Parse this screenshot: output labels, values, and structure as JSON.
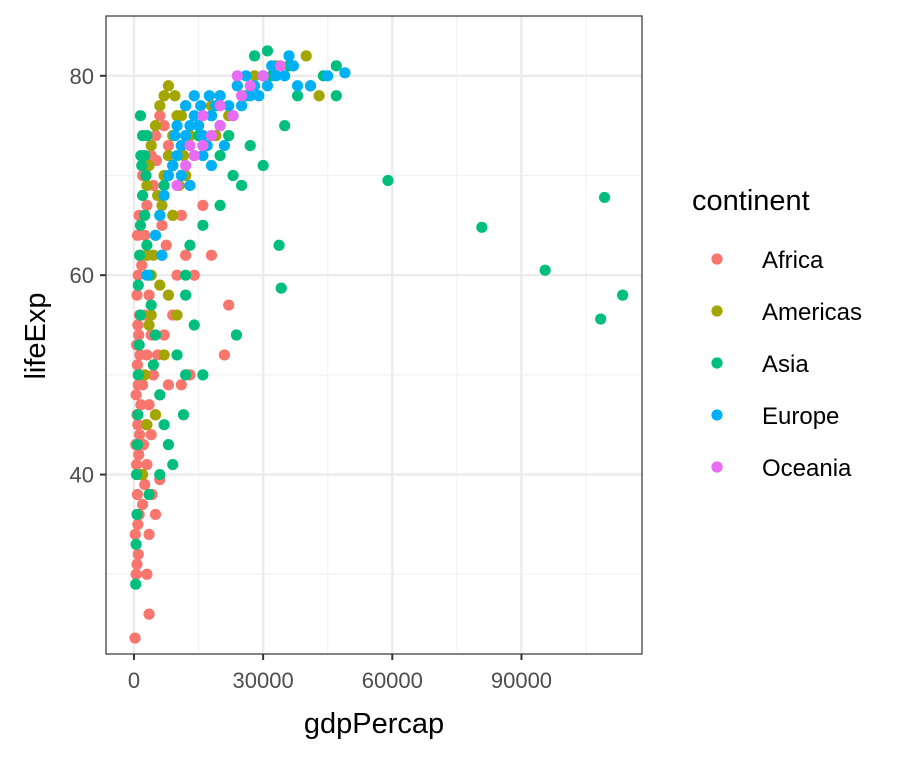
{
  "chart_data": {
    "type": "scatter",
    "xlabel": "gdpPercap",
    "ylabel": "lifeExp",
    "xlim": [
      -6500,
      118000
    ],
    "ylim": [
      22,
      86
    ],
    "x_ticks": [
      0,
      30000,
      60000,
      90000
    ],
    "x_tick_labels": [
      "0",
      "30000",
      "60000",
      "90000"
    ],
    "y_ticks": [
      40,
      60,
      80
    ],
    "y_tick_labels": [
      "40",
      "60",
      "80"
    ],
    "grid": true,
    "legend_title": "continent",
    "legend_position": "right",
    "series": [
      {
        "name": "Africa",
        "color": "#F8766D",
        "points": [
          [
            241,
            23.6
          ],
          [
            500,
            30
          ],
          [
            700,
            31
          ],
          [
            1000,
            32
          ],
          [
            300,
            34
          ],
          [
            900,
            35
          ],
          [
            1200,
            36
          ],
          [
            800,
            38
          ],
          [
            1500,
            40
          ],
          [
            600,
            41
          ],
          [
            1100,
            42
          ],
          [
            400,
            43
          ],
          [
            1300,
            44
          ],
          [
            900,
            45
          ],
          [
            700,
            46
          ],
          [
            1600,
            47
          ],
          [
            500,
            48
          ],
          [
            1000,
            49
          ],
          [
            1200,
            50
          ],
          [
            800,
            51
          ],
          [
            1400,
            52
          ],
          [
            600,
            53
          ],
          [
            1100,
            54
          ],
          [
            900,
            55
          ],
          [
            1300,
            56
          ],
          [
            700,
            58
          ],
          [
            1000,
            60
          ],
          [
            1500,
            62
          ],
          [
            800,
            64
          ],
          [
            1200,
            66
          ],
          [
            2000,
            37
          ],
          [
            2500,
            39
          ],
          [
            3000,
            41
          ],
          [
            2200,
            43
          ],
          [
            2800,
            45
          ],
          [
            3500,
            47
          ],
          [
            2000,
            49
          ],
          [
            3000,
            52
          ],
          [
            4000,
            54
          ],
          [
            2500,
            56
          ],
          [
            3500,
            58
          ],
          [
            1800,
            61
          ],
          [
            2500,
            64
          ],
          [
            3000,
            67
          ],
          [
            2000,
            70
          ],
          [
            4000,
            44
          ],
          [
            5000,
            46
          ],
          [
            6000,
            48
          ],
          [
            4500,
            50
          ],
          [
            5500,
            52
          ],
          [
            7000,
            54
          ],
          [
            3000,
            30
          ],
          [
            3500,
            34
          ],
          [
            5000,
            36
          ],
          [
            4200,
            38
          ],
          [
            6000,
            39.5
          ],
          [
            8000,
            49
          ],
          [
            9000,
            56
          ],
          [
            10000,
            60
          ],
          [
            12000,
            62
          ],
          [
            14000,
            60
          ],
          [
            11000,
            49
          ],
          [
            21000,
            52
          ],
          [
            22000,
            57
          ],
          [
            18000,
            62
          ],
          [
            16000,
            67
          ],
          [
            4000,
            72
          ],
          [
            5000,
            74
          ],
          [
            6000,
            76
          ],
          [
            7000,
            75
          ],
          [
            8000,
            73
          ],
          [
            9000,
            71
          ],
          [
            11000,
            66
          ],
          [
            13000,
            50
          ],
          [
            6500,
            65
          ],
          [
            7500,
            63
          ],
          [
            3500,
            26
          ],
          [
            4500,
            69
          ],
          [
            5200,
            71.5
          ]
        ]
      },
      {
        "name": "Americas",
        "color": "#A3A500",
        "points": [
          [
            2000,
            40
          ],
          [
            3000,
            45
          ],
          [
            2500,
            50
          ],
          [
            3500,
            55
          ],
          [
            4000,
            60
          ],
          [
            4500,
            62
          ],
          [
            5000,
            64
          ],
          [
            6000,
            66
          ],
          [
            5500,
            68
          ],
          [
            7000,
            70
          ],
          [
            8000,
            72
          ],
          [
            9000,
            74
          ],
          [
            10000,
            76
          ],
          [
            12000,
            77
          ],
          [
            7000,
            78
          ],
          [
            8000,
            79
          ],
          [
            6000,
            77
          ],
          [
            5000,
            75
          ],
          [
            4000,
            73
          ],
          [
            3500,
            71
          ],
          [
            3000,
            69
          ],
          [
            9500,
            78
          ],
          [
            11000,
            76
          ],
          [
            13000,
            74
          ],
          [
            15000,
            75
          ],
          [
            18000,
            77
          ],
          [
            20000,
            78
          ],
          [
            24000,
            79
          ],
          [
            28000,
            80
          ],
          [
            33000,
            81
          ],
          [
            37000,
            81
          ],
          [
            40000,
            82
          ],
          [
            43000,
            78
          ],
          [
            8000,
            58
          ],
          [
            10000,
            56
          ],
          [
            6000,
            59
          ],
          [
            5000,
            46
          ],
          [
            7000,
            52
          ],
          [
            9000,
            66
          ],
          [
            12000,
            70
          ],
          [
            14000,
            72
          ],
          [
            16000,
            73
          ],
          [
            4000,
            56
          ],
          [
            3000,
            62
          ],
          [
            6500,
            67
          ],
          [
            10500,
            69
          ],
          [
            11500,
            72
          ],
          [
            19000,
            74
          ],
          [
            22000,
            76
          ]
        ]
      },
      {
        "name": "Asia",
        "color": "#00BF7D",
        "points": [
          [
            400,
            29
          ],
          [
            500,
            33
          ],
          [
            700,
            36
          ],
          [
            600,
            40
          ],
          [
            800,
            43
          ],
          [
            900,
            46
          ],
          [
            1000,
            50
          ],
          [
            1200,
            53
          ],
          [
            1500,
            56
          ],
          [
            1000,
            59
          ],
          [
            1300,
            62
          ],
          [
            1500,
            65
          ],
          [
            2000,
            68
          ],
          [
            1800,
            71
          ],
          [
            2500,
            72
          ],
          [
            3000,
            74
          ],
          [
            1500,
            76
          ],
          [
            2000,
            74
          ],
          [
            2500,
            66
          ],
          [
            3000,
            63
          ],
          [
            3500,
            60
          ],
          [
            4000,
            57
          ],
          [
            5000,
            54
          ],
          [
            4500,
            51
          ],
          [
            6000,
            48
          ],
          [
            7000,
            45
          ],
          [
            8000,
            43
          ],
          [
            9000,
            41
          ],
          [
            10000,
            52
          ],
          [
            12000,
            50
          ],
          [
            14000,
            55
          ],
          [
            12000,
            58
          ],
          [
            12000,
            60
          ],
          [
            13000,
            63
          ],
          [
            16000,
            65
          ],
          [
            20000,
            67
          ],
          [
            25000,
            69
          ],
          [
            30000,
            71
          ],
          [
            16000,
            50
          ],
          [
            11500,
            46
          ],
          [
            23800,
            54
          ],
          [
            33700,
            63
          ],
          [
            34200,
            58.7
          ],
          [
            35000,
            75
          ],
          [
            38000,
            78
          ],
          [
            41000,
            79
          ],
          [
            47000,
            78
          ],
          [
            59000,
            69.5
          ],
          [
            80800,
            64.8
          ],
          [
            95500,
            60.5
          ],
          [
            108400,
            55.6
          ],
          [
            109300,
            67.8
          ],
          [
            113500,
            58
          ],
          [
            28000,
            82
          ],
          [
            31000,
            82.5
          ],
          [
            36000,
            81
          ],
          [
            32000,
            80
          ],
          [
            26000,
            78
          ],
          [
            18000,
            76
          ],
          [
            15000,
            74
          ],
          [
            20000,
            72
          ],
          [
            23000,
            70
          ],
          [
            27000,
            73
          ],
          [
            6000,
            40
          ],
          [
            3500,
            38
          ],
          [
            7000,
            69
          ],
          [
            9000,
            71
          ],
          [
            11000,
            73
          ],
          [
            2800,
            70
          ],
          [
            1600,
            72
          ],
          [
            22000,
            74
          ],
          [
            44000,
            80
          ],
          [
            47000,
            81
          ]
        ]
      },
      {
        "name": "Europe",
        "color": "#00B0F6",
        "points": [
          [
            3000,
            60
          ],
          [
            5000,
            64
          ],
          [
            6000,
            66
          ],
          [
            7000,
            68
          ],
          [
            8000,
            70
          ],
          [
            9000,
            71
          ],
          [
            10000,
            72
          ],
          [
            11000,
            73
          ],
          [
            12000,
            74
          ],
          [
            13000,
            75
          ],
          [
            14000,
            76
          ],
          [
            15000,
            75
          ],
          [
            16000,
            74
          ],
          [
            17000,
            73
          ],
          [
            18000,
            76
          ],
          [
            19000,
            77
          ],
          [
            20000,
            78
          ],
          [
            22000,
            77
          ],
          [
            24000,
            79
          ],
          [
            26000,
            80
          ],
          [
            28000,
            79
          ],
          [
            30000,
            80
          ],
          [
            32000,
            81
          ],
          [
            34000,
            81
          ],
          [
            36000,
            82
          ],
          [
            38000,
            79
          ],
          [
            41000,
            79
          ],
          [
            45000,
            80
          ],
          [
            49000,
            80.3
          ],
          [
            14000,
            78
          ],
          [
            12000,
            77
          ],
          [
            10000,
            75
          ],
          [
            11000,
            70
          ],
          [
            13000,
            69
          ],
          [
            16000,
            72
          ],
          [
            20000,
            75
          ],
          [
            23000,
            76
          ],
          [
            25000,
            77
          ],
          [
            27000,
            78
          ],
          [
            29000,
            78
          ],
          [
            31000,
            79
          ],
          [
            33000,
            80
          ],
          [
            35000,
            80
          ],
          [
            37000,
            81
          ],
          [
            18000,
            71
          ],
          [
            21000,
            73
          ],
          [
            6500,
            62
          ],
          [
            9500,
            74
          ],
          [
            15500,
            77
          ],
          [
            17500,
            78
          ]
        ]
      },
      {
        "name": "Oceania",
        "color": "#E76BF3",
        "points": [
          [
            10000,
            69
          ],
          [
            12000,
            71
          ],
          [
            14000,
            72
          ],
          [
            16000,
            73
          ],
          [
            18000,
            74
          ],
          [
            20000,
            75
          ],
          [
            23000,
            76
          ],
          [
            25000,
            78
          ],
          [
            27000,
            79
          ],
          [
            30000,
            80
          ],
          [
            34000,
            81
          ],
          [
            24000,
            80
          ],
          [
            20000,
            77
          ],
          [
            16000,
            76
          ],
          [
            13000,
            73
          ]
        ]
      }
    ]
  }
}
